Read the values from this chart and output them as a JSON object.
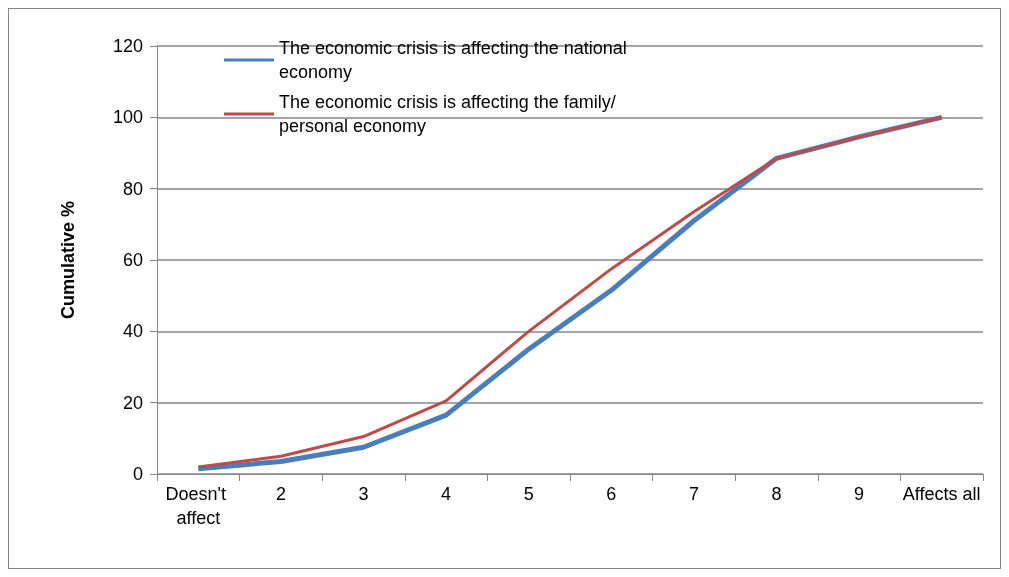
{
  "chart_data": {
    "type": "line",
    "ylabel": "Cumulative %",
    "categories": [
      "Doesn't affect",
      "2",
      "3",
      "4",
      "5",
      "6",
      "7",
      "8",
      "9",
      "Affects all"
    ],
    "series": [
      {
        "name": "The economic crisis is affecting the national economy",
        "color": "#4a7ebb",
        "values": [
          1.5,
          3.5,
          7.5,
          16.5,
          35,
          51.5,
          71,
          88.5,
          94.5,
          100
        ]
      },
      {
        "name": "The economic crisis is affecting the family/personal economy",
        "color": "#be4b48",
        "values": [
          2,
          5,
          10.5,
          20.5,
          40,
          57.5,
          73.5,
          88.5,
          94.5,
          100
        ]
      }
    ],
    "ylim": [
      0,
      120
    ],
    "yticks": [
      0,
      20,
      40,
      60,
      80,
      100,
      120
    ],
    "grid": "y",
    "legend": "top left",
    "marker": "none",
    "line_style": "solid"
  }
}
